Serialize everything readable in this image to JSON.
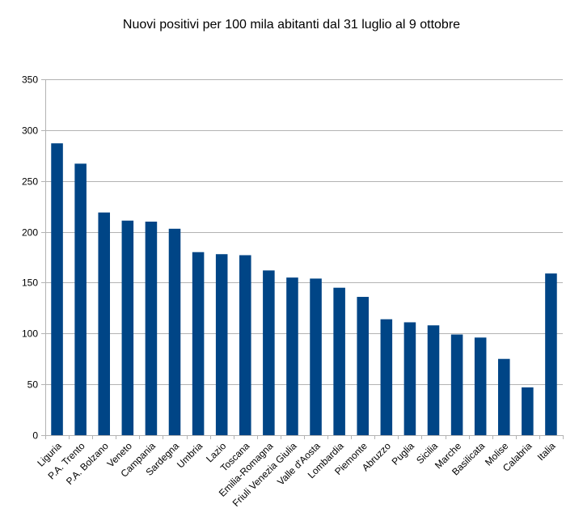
{
  "chart_data": {
    "type": "bar",
    "title": "Nuovi positivi per 100 mila abitanti dal 31 luglio al 9 ottobre",
    "xlabel": "",
    "ylabel": "",
    "categories": [
      "Liguria",
      "P.A. Trento",
      "P.A. Bolzano",
      "Veneto",
      "Campania",
      "Sardegna",
      "Umbria",
      "Lazio",
      "Toscana",
      "Emilia-Romagna",
      "Friuli Venezia Giulia",
      "Valle d'Aosta",
      "Lombardia",
      "Piemonte",
      "Abruzzo",
      "Puglia",
      "Sicilia",
      "Marche",
      "Basilicata",
      "Molise",
      "Calabria",
      "Italia"
    ],
    "values": [
      287,
      267,
      219,
      211,
      210,
      203,
      180,
      178,
      177,
      162,
      155,
      154,
      145,
      136,
      114,
      111,
      108,
      99,
      96,
      75,
      47,
      159
    ],
    "ylim": [
      0,
      350
    ],
    "yticks": [
      0,
      50,
      100,
      150,
      200,
      250,
      300,
      350
    ],
    "grid": "horizontal",
    "legend": "none",
    "bar_color": "#004586",
    "grid_color": "#b3b3b3"
  }
}
